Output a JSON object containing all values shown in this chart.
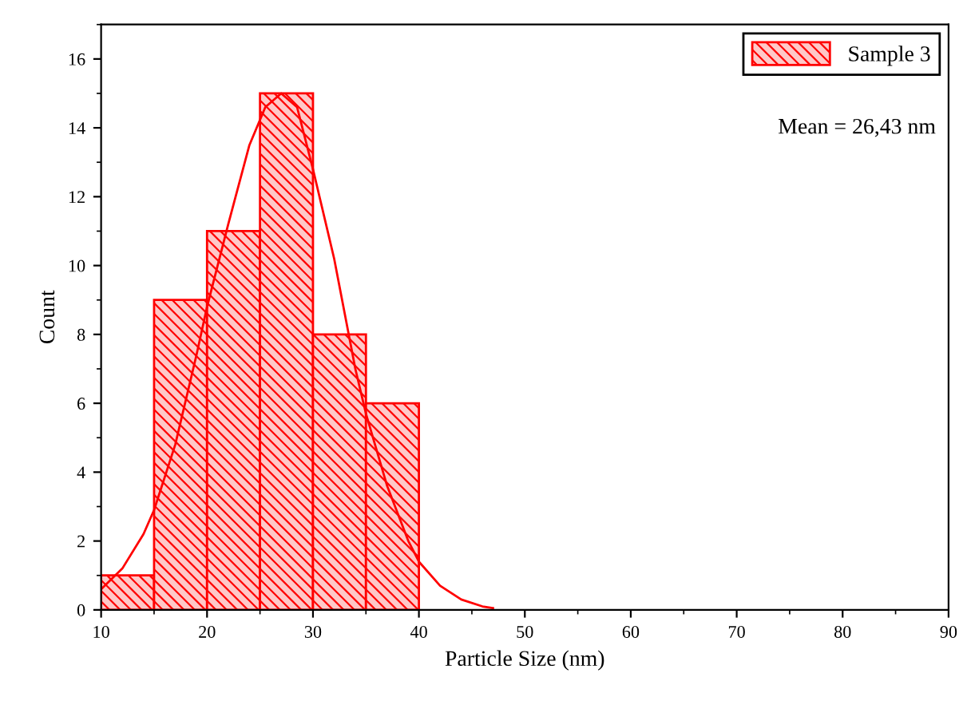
{
  "chart_data": {
    "type": "histogram",
    "xlabel": "Particle Size (nm)",
    "ylabel": "Count",
    "bins": [
      10,
      15,
      20,
      25,
      30,
      35,
      40
    ],
    "series": [
      {
        "name": "Sample 3",
        "color": "#ff0000",
        "values": [
          1,
          9,
          11,
          15,
          8,
          6
        ]
      },
      {
        "type": "line",
        "color": "#ff0000",
        "x": [
          10,
          12,
          14,
          15,
          17,
          19,
          20,
          22,
          24,
          25.5,
          27,
          28.5,
          30,
          32,
          34,
          35,
          37,
          39,
          40,
          42,
          44,
          46,
          47
        ],
        "values": [
          0.6,
          1.2,
          2.2,
          2.9,
          4.8,
          7.4,
          8.8,
          11.2,
          13.5,
          14.6,
          15.0,
          14.6,
          12.8,
          10.2,
          7.0,
          5.7,
          3.6,
          2.0,
          1.4,
          0.7,
          0.3,
          0.1,
          0.05
        ]
      }
    ],
    "annotations": [
      "Mean = 26,43 nm"
    ],
    "xlim": [
      10,
      90
    ],
    "xticks": [
      10,
      20,
      30,
      40,
      50,
      60,
      70,
      80,
      90
    ],
    "ylim": [
      0,
      17
    ],
    "yticks": [
      0,
      2,
      4,
      6,
      8,
      10,
      12,
      14,
      16
    ],
    "legend": "top right",
    "grid": false
  }
}
